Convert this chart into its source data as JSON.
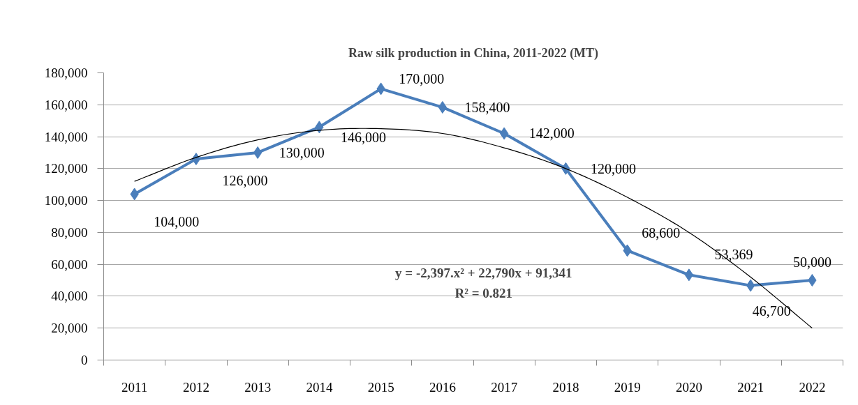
{
  "chart_data": {
    "type": "line",
    "title": "Raw silk production in China, 2011-2022 (MT)",
    "categories": [
      "2011",
      "2012",
      "2013",
      "2014",
      "2015",
      "2016",
      "2017",
      "2018",
      "2019",
      "2020",
      "2021",
      "2022"
    ],
    "series": [
      {
        "color": "#4a7ebb",
        "marker": "diamond",
        "values": [
          104000,
          126000,
          130000,
          146000,
          170000,
          158400,
          142000,
          120000,
          68600,
          53369,
          46700,
          50000
        ],
        "value_labels": [
          "104,000",
          "126,000",
          "130,000",
          "146,000",
          "170,000",
          "158,400",
          "142,000",
          "120,000",
          "68,600",
          "53,369",
          "46,700",
          "50,000"
        ]
      },
      {
        "type": "line",
        "color": "#000000",
        "marker": "none",
        "values": [
          112000,
          127000,
          138000,
          144000,
          145000,
          142000,
          133000,
          120000,
          102000,
          80000,
          52000,
          20000
        ]
      }
    ],
    "ylim": [
      0,
      180000
    ],
    "yticks": [
      0,
      {
        "value": 20000,
        "label": "20,000"
      },
      {
        "value": 40000,
        "label": "40,000"
      },
      {
        "value": 60000,
        "label": "60,000"
      },
      {
        "value": 80000,
        "label": "80,000"
      },
      {
        "value": 100000,
        "label": "100,000"
      },
      {
        "value": 120000,
        "label": "120,000"
      },
      {
        "value": 140000,
        "label": "140,000"
      },
      {
        "value": 160000,
        "label": "160,000"
      },
      {
        "value": 180000,
        "label": "180,000"
      }
    ],
    "grid": "y",
    "annotations": [
      "y = -2,397.x² + 22,790x + 91,341",
      "R² = 0.821"
    ]
  }
}
